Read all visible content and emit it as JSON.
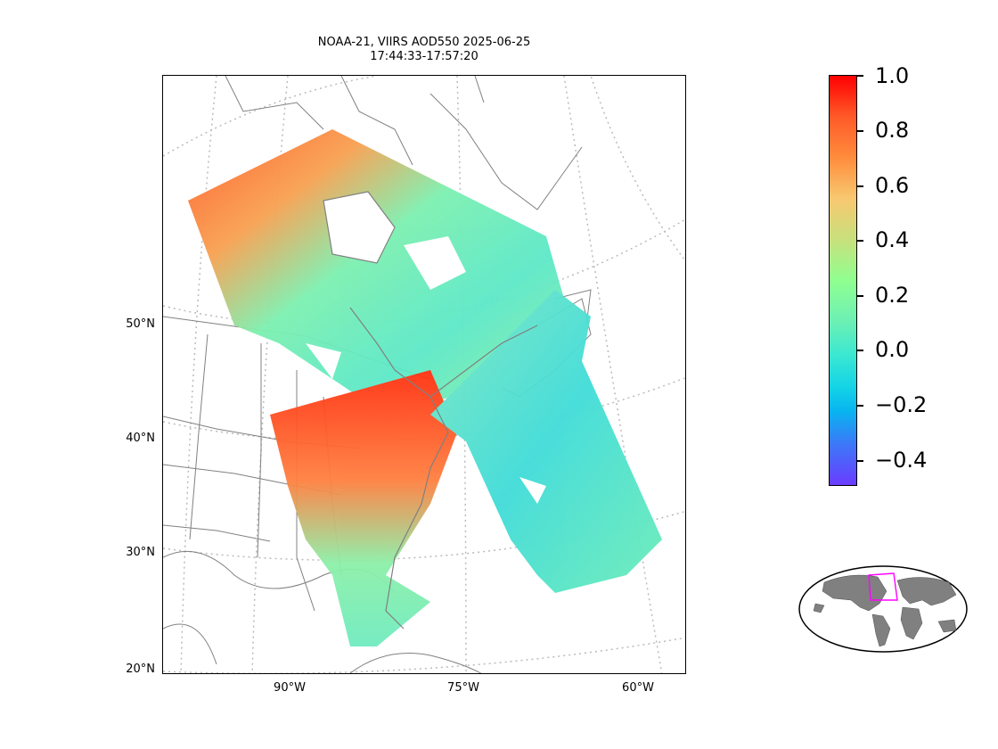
{
  "title": {
    "line1": "NOAA-21, VIIRS AOD550 2025-06-25",
    "line2": "17:44:33-17:57:20"
  },
  "map": {
    "lat_labels": [
      "50°N",
      "40°N",
      "30°N",
      "20°N"
    ],
    "lon_labels": [
      "90°W",
      "75°W",
      "60°W"
    ],
    "gridline_color": "#bbbbbb",
    "coastline_color": "#808080",
    "colormap": "rainbow",
    "swath_icon": "satellite-swath-data"
  },
  "colorbar": {
    "ticks": [
      "1.0",
      "0.8",
      "0.6",
      "0.4",
      "0.2",
      "0.0",
      "−0.2",
      "−0.4"
    ],
    "vmin": -0.5,
    "vmax": 1.0
  },
  "inset": {
    "land_color": "#808080",
    "box_color": "#ff00ff"
  }
}
